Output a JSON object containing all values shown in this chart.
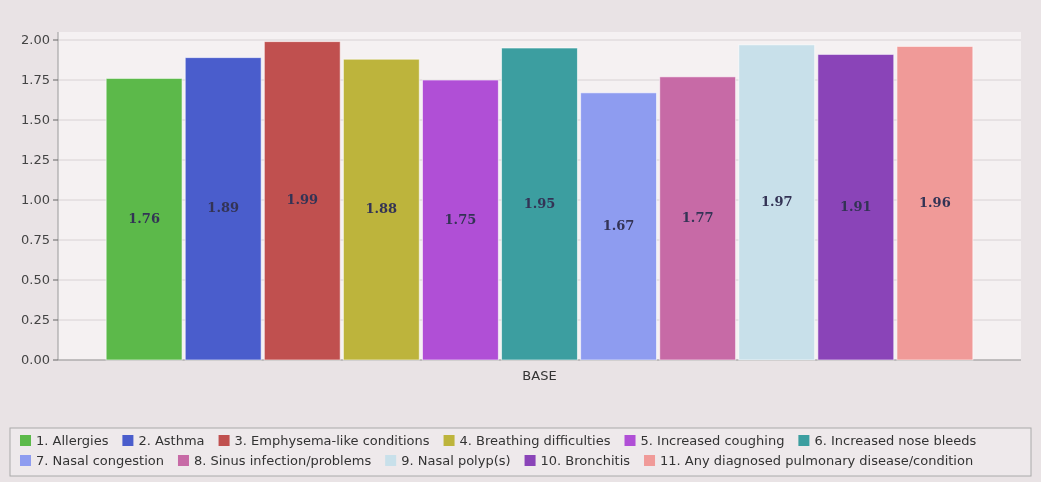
{
  "chart_data": {
    "type": "bar",
    "categories": [
      "BASE"
    ],
    "series": [
      {
        "name": "1. Allergies",
        "color": "#5cb94a",
        "values": [
          1.76
        ]
      },
      {
        "name": "2. Asthma",
        "color": "#4a5dcc",
        "values": [
          1.89
        ]
      },
      {
        "name": "3. Emphysema-like conditions",
        "color": "#c0504f",
        "values": [
          1.99
        ]
      },
      {
        "name": "4. Breathing difficulties",
        "color": "#bdb43c",
        "values": [
          1.88
        ]
      },
      {
        "name": "5. Increased coughing",
        "color": "#b04fd6",
        "values": [
          1.75
        ]
      },
      {
        "name": "6. Increased nose bleeds",
        "color": "#3c9ea0",
        "values": [
          1.95
        ]
      },
      {
        "name": "7. Nasal congestion",
        "color": "#8e9cf0",
        "values": [
          1.67
        ]
      },
      {
        "name": "8. Sinus infection/problems",
        "color": "#c76aa6",
        "values": [
          1.77
        ]
      },
      {
        "name": "9. Nasal polyp(s)",
        "color": "#c8e0ea",
        "values": [
          1.97
        ]
      },
      {
        "name": "10. Bronchitis",
        "color": "#8a44b8",
        "values": [
          1.91
        ]
      },
      {
        "name": "11. Any diagnosed pulmonary disease/condition",
        "color": "#f09a98",
        "values": [
          1.96
        ]
      }
    ],
    "ylim": [
      0,
      2.05
    ],
    "yticks": [
      {
        "value": 0,
        "label": "0.00"
      },
      {
        "value": 0.25,
        "label": "0.25"
      },
      {
        "value": 0.5,
        "label": "0.50"
      },
      {
        "value": 0.75,
        "label": "0.75"
      },
      {
        "value": 1,
        "label": "1.00"
      },
      {
        "value": 1.25,
        "label": "1.25"
      },
      {
        "value": 1.5,
        "label": "1.50"
      },
      {
        "value": 1.75,
        "label": "1.75"
      },
      {
        "value": 2,
        "label": "2.00"
      }
    ],
    "grid": "y",
    "legend": "bottom",
    "data_labels": true
  }
}
